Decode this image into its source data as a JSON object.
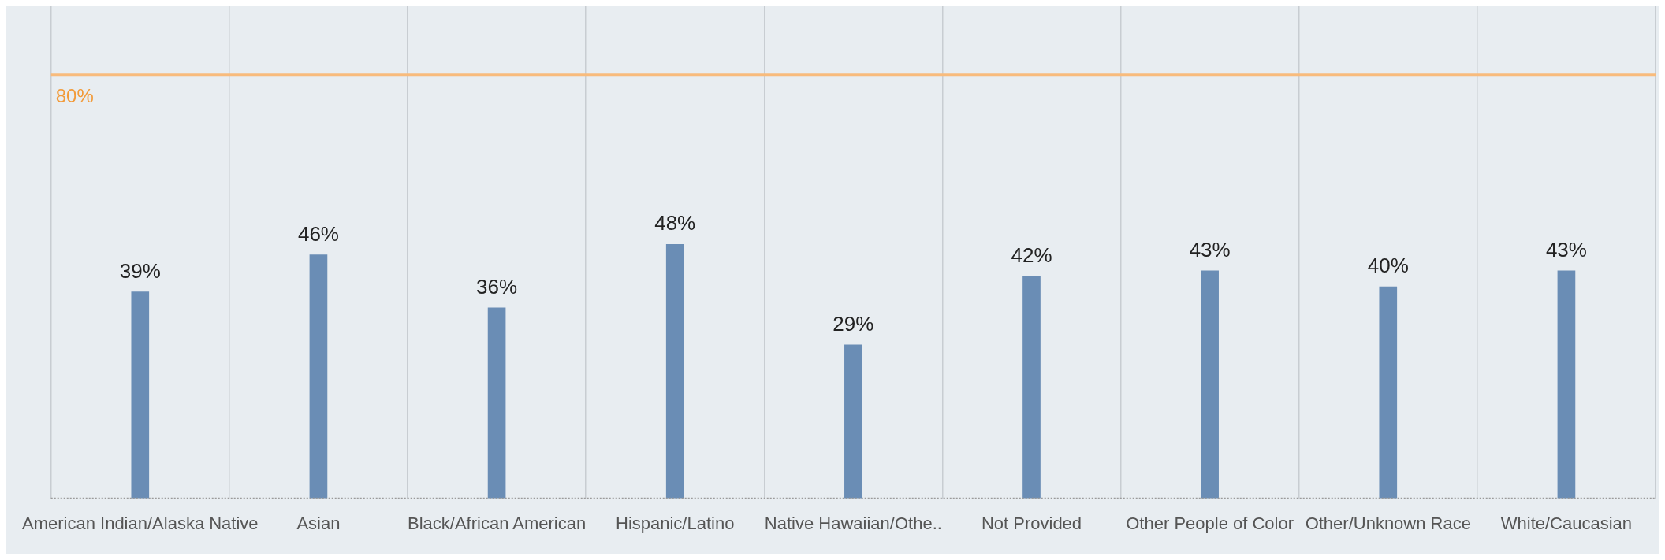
{
  "chart_data": {
    "type": "bar",
    "categories": [
      "American Indian/Alaska Native",
      "Asian",
      "Black/African American",
      "Hispanic/Latino",
      "Native Hawaiian/Othe..",
      "Not Provided",
      "Other People of Color",
      "Other/Unknown Race",
      "White/Caucasian"
    ],
    "values": [
      39,
      46,
      36,
      48,
      29,
      42,
      43,
      40,
      43
    ],
    "value_labels": [
      "39%",
      "46%",
      "36%",
      "48%",
      "29%",
      "42%",
      "43%",
      "40%",
      "43%"
    ],
    "color": "#6a8db5",
    "ylim": [
      0,
      93
    ],
    "grid": "x",
    "tick_labels": "x",
    "legend": false,
    "ref_lines": [
      {
        "axis": "y",
        "value": 80,
        "label": "80%",
        "color": "#f8bb7c"
      }
    ]
  }
}
